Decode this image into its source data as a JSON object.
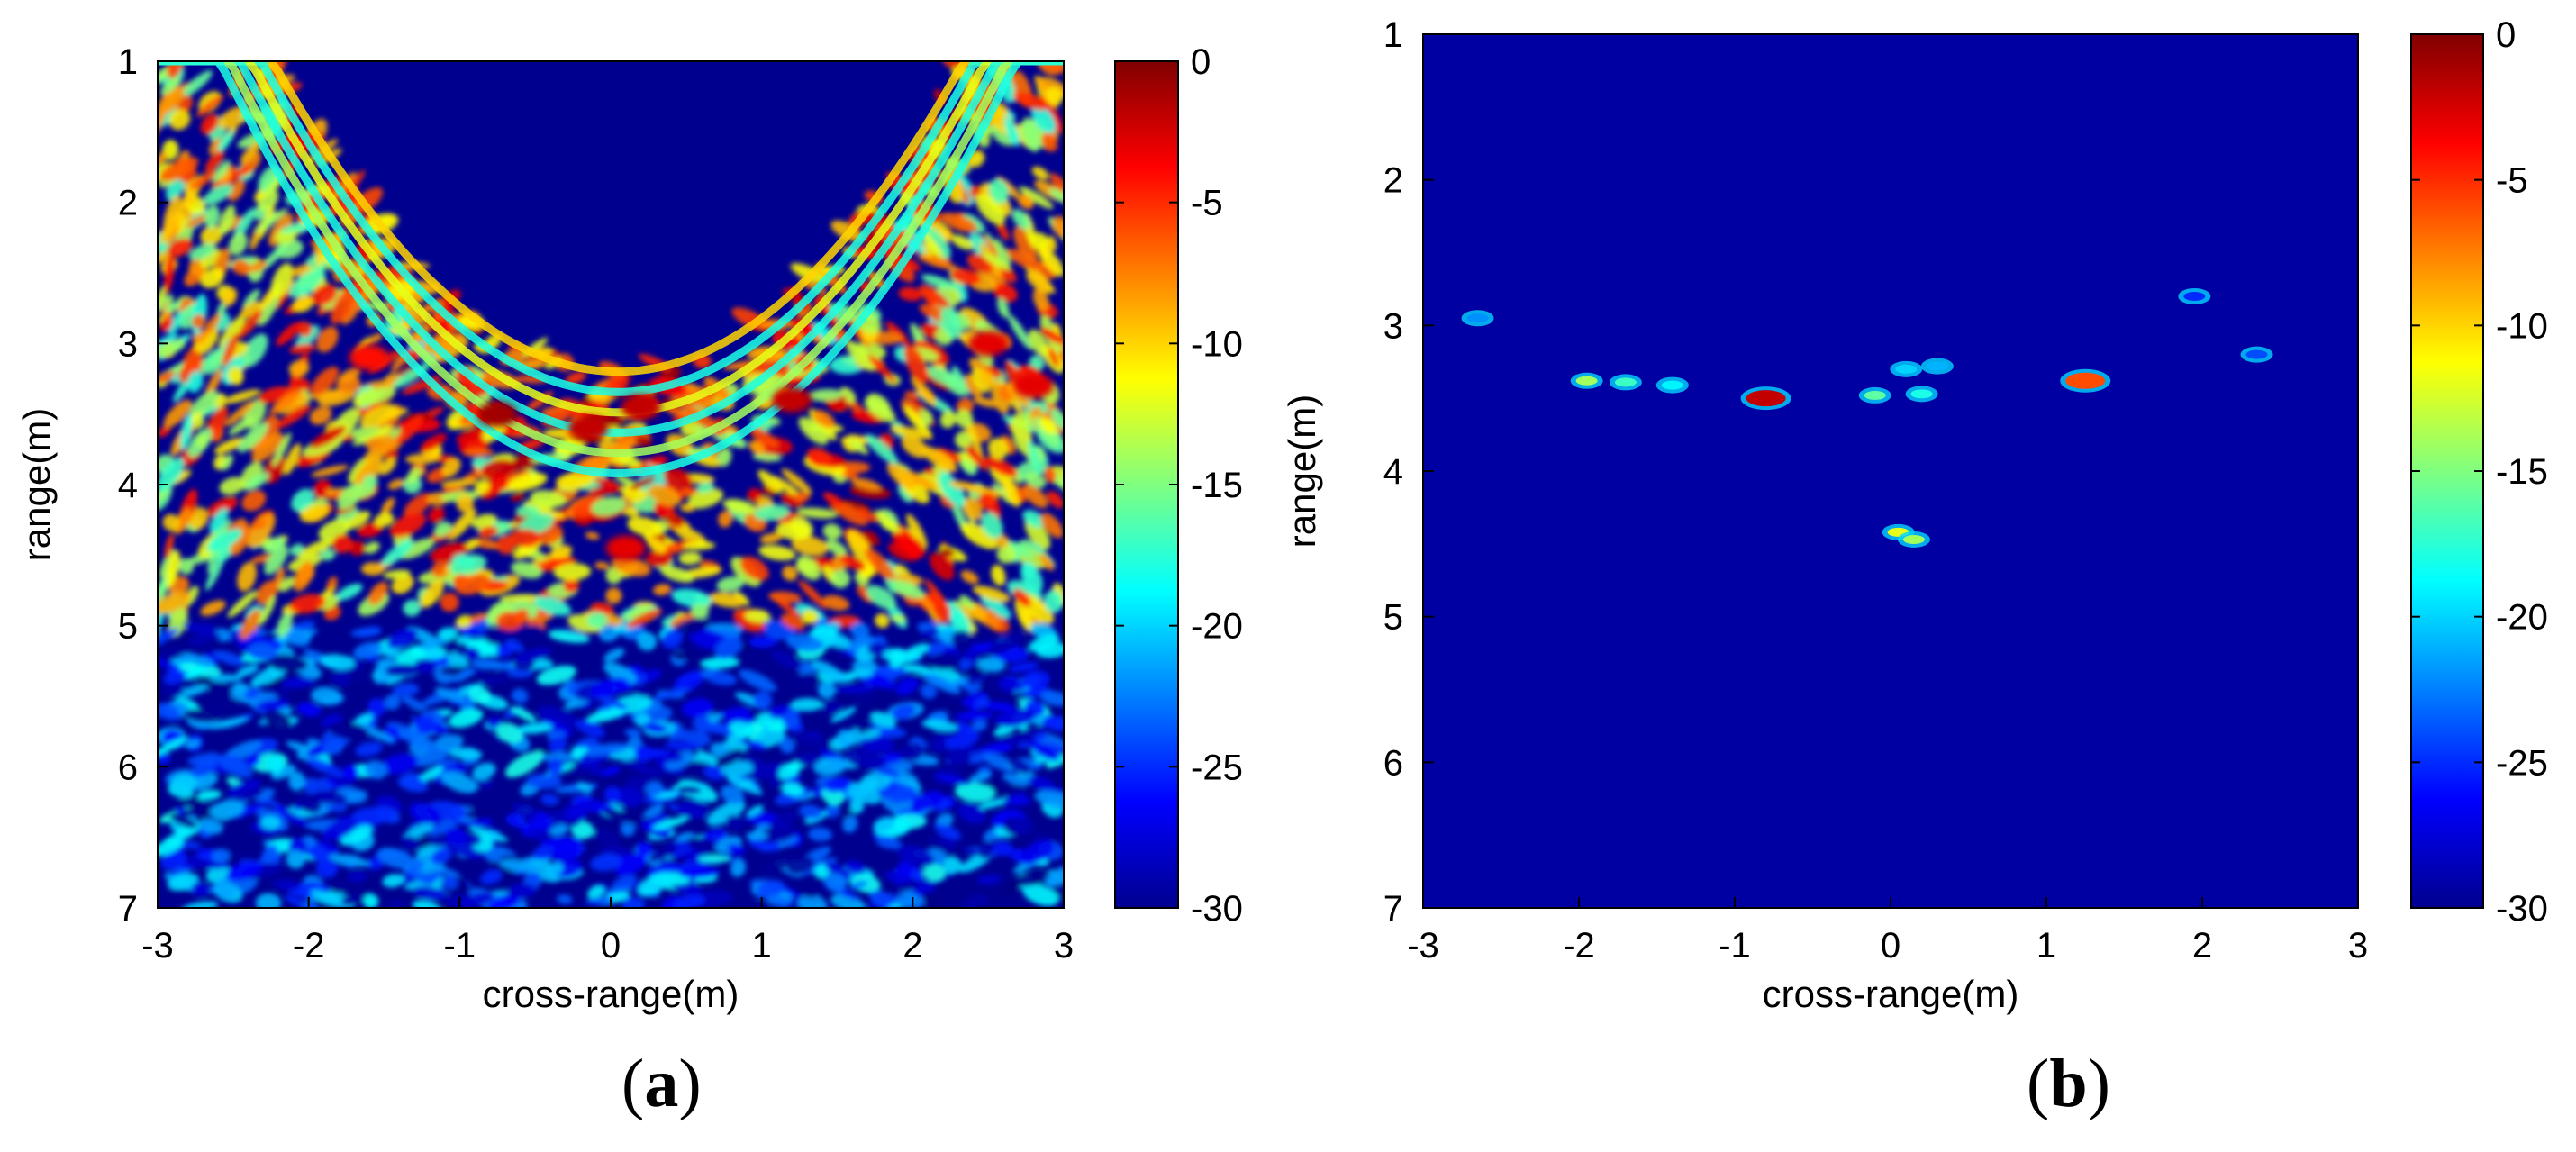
{
  "chart_data": [
    {
      "type": "heatmap",
      "panel_label": "a",
      "xlabel": "cross-range(m)",
      "ylabel": "range(m)",
      "xlim": [
        -3,
        3
      ],
      "ylim": [
        7,
        1
      ],
      "xticks": [
        -3,
        -2,
        -1,
        0,
        1,
        2,
        3
      ],
      "yticks": [
        1,
        2,
        3,
        4,
        5,
        6,
        7
      ],
      "colorbar": {
        "min": -30,
        "max": 0,
        "ticks": [
          0,
          -5,
          -10,
          -15,
          -20,
          -25,
          -30
        ],
        "colormap": "jet"
      },
      "description_features": {
        "parabola_vertex": [
          0.05,
          3.2
        ],
        "hotspots": [
          {
            "x": -0.75,
            "y": 3.5,
            "value": -1
          },
          {
            "x": -0.15,
            "y": 3.6,
            "value": -2
          },
          {
            "x": 0.2,
            "y": 3.45,
            "value": -2
          },
          {
            "x": 1.2,
            "y": 3.4,
            "value": -2
          },
          {
            "x": 0.1,
            "y": 4.45,
            "value": -3
          },
          {
            "x": 2.5,
            "y": 3.0,
            "value": -3
          },
          {
            "x": 2.8,
            "y": 3.3,
            "value": -3
          },
          {
            "x": -1.6,
            "y": 3.1,
            "value": -4
          }
        ]
      }
    },
    {
      "type": "heatmap",
      "panel_label": "b",
      "xlabel": "cross-range(m)",
      "ylabel": "range(m)",
      "xlim": [
        -3,
        3
      ],
      "ylim": [
        7,
        1
      ],
      "xticks": [
        -3,
        -2,
        -1,
        0,
        1,
        2,
        3
      ],
      "yticks": [
        1,
        2,
        3,
        4,
        5,
        6,
        7
      ],
      "colorbar": {
        "min": -30,
        "max": 0,
        "ticks": [
          0,
          -5,
          -10,
          -15,
          -20,
          -25,
          -30
        ],
        "colormap": "jet"
      },
      "background_value": -29,
      "targets": [
        {
          "x": -0.8,
          "y": 3.5,
          "value": -2
        },
        {
          "x": 1.25,
          "y": 3.38,
          "value": -6
        },
        {
          "x": -1.95,
          "y": 3.38,
          "value": -14
        },
        {
          "x": -1.7,
          "y": 3.39,
          "value": -17
        },
        {
          "x": -1.4,
          "y": 3.41,
          "value": -19
        },
        {
          "x": -0.1,
          "y": 3.48,
          "value": -16
        },
        {
          "x": 0.2,
          "y": 3.47,
          "value": -18
        },
        {
          "x": 0.05,
          "y": 4.42,
          "value": -12
        },
        {
          "x": 0.15,
          "y": 4.47,
          "value": -14
        },
        {
          "x": 0.1,
          "y": 3.3,
          "value": -20
        },
        {
          "x": 0.3,
          "y": 3.28,
          "value": -21
        },
        {
          "x": -2.65,
          "y": 2.95,
          "value": -22
        },
        {
          "x": 2.35,
          "y": 3.2,
          "value": -24
        },
        {
          "x": 1.95,
          "y": 2.8,
          "value": -25
        }
      ]
    }
  ]
}
